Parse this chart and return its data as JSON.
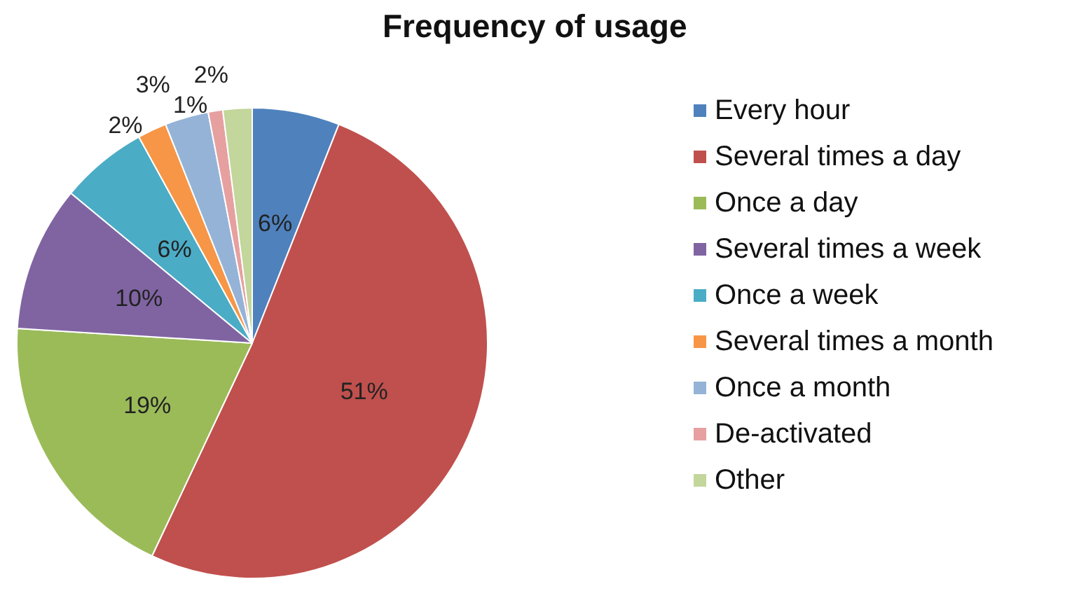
{
  "chart_data": {
    "type": "pie",
    "title": "Frequency of usage",
    "categories": [
      "Every hour",
      "Several times a day",
      "Once a day",
      "Several times a week",
      "Once a week",
      "Several times a month",
      "Once a month",
      "De-activated",
      "Other"
    ],
    "values": [
      6,
      51,
      19,
      10,
      6,
      2,
      3,
      1,
      2
    ],
    "colors": [
      "#4f81bd",
      "#c0504d",
      "#9bbb59",
      "#8064a2",
      "#4bacc6",
      "#f79646",
      "#95b3d7",
      "#e6a0a0",
      "#c3d69b"
    ],
    "value_labels": [
      "6%",
      "51%",
      "19%",
      "10%",
      "6%",
      "2%",
      "3%",
      "1%",
      "2%"
    ],
    "legend": "right"
  }
}
